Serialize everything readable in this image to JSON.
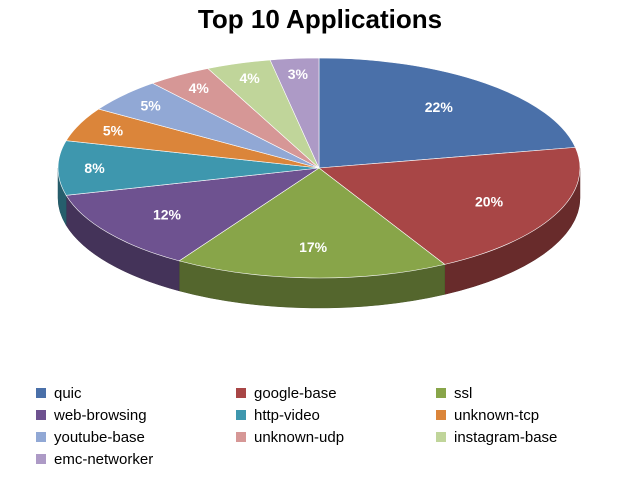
{
  "chart_data": {
    "type": "pie",
    "title": "Top 10 Applications",
    "legend_position": "bottom",
    "slices": [
      {
        "label": "quic",
        "value": 22,
        "display": "22%",
        "color": "#4A70A9"
      },
      {
        "label": "google-base",
        "value": 20,
        "display": "20%",
        "color": "#A84646"
      },
      {
        "label": "ssl",
        "value": 17,
        "display": "17%",
        "color": "#88A549"
      },
      {
        "label": "web-browsing",
        "value": 12,
        "display": "12%",
        "color": "#6E5290"
      },
      {
        "label": "http-video",
        "value": 8,
        "display": "8%",
        "color": "#3E97AE"
      },
      {
        "label": "unknown-tcp",
        "value": 5,
        "display": "5%",
        "color": "#DB853A"
      },
      {
        "label": "youtube-base",
        "value": 5,
        "display": "5%",
        "color": "#91A8D5"
      },
      {
        "label": "unknown-udp",
        "value": 4,
        "display": "4%",
        "color": "#D69796"
      },
      {
        "label": "instagram-base",
        "value": 4,
        "display": "4%",
        "color": "#C0D59A"
      },
      {
        "label": "emc-networker",
        "value": 3,
        "display": "3%",
        "color": "#AD9AC6"
      }
    ]
  }
}
